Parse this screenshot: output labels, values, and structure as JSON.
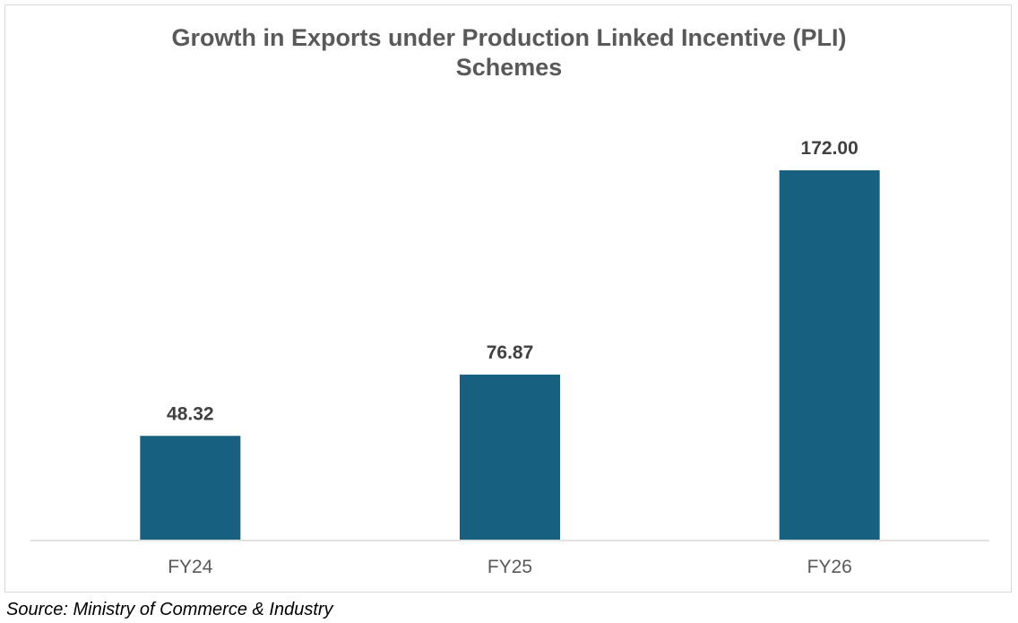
{
  "chart_data": {
    "type": "bar",
    "title_lines": [
      "Growth in Exports under Production Linked Incentive (PLI)",
      "Schemes"
    ],
    "categories": [
      "FY24",
      "FY25",
      "FY26"
    ],
    "values": [
      48.32,
      76.87,
      172.0
    ],
    "value_labels": [
      "48.32",
      "76.87",
      "172.00"
    ],
    "xlabel": "",
    "ylabel": "",
    "ylim": [
      0,
      172
    ],
    "grid": false,
    "legend": "none",
    "bar_color": "#17607f"
  },
  "source": "Source: Ministry of Commerce & Industry",
  "colors": {
    "title": "#595959",
    "data_label": "#404040",
    "tick_label": "#595959",
    "axis": "#d9d9d9",
    "border": "#d9d9d9"
  }
}
